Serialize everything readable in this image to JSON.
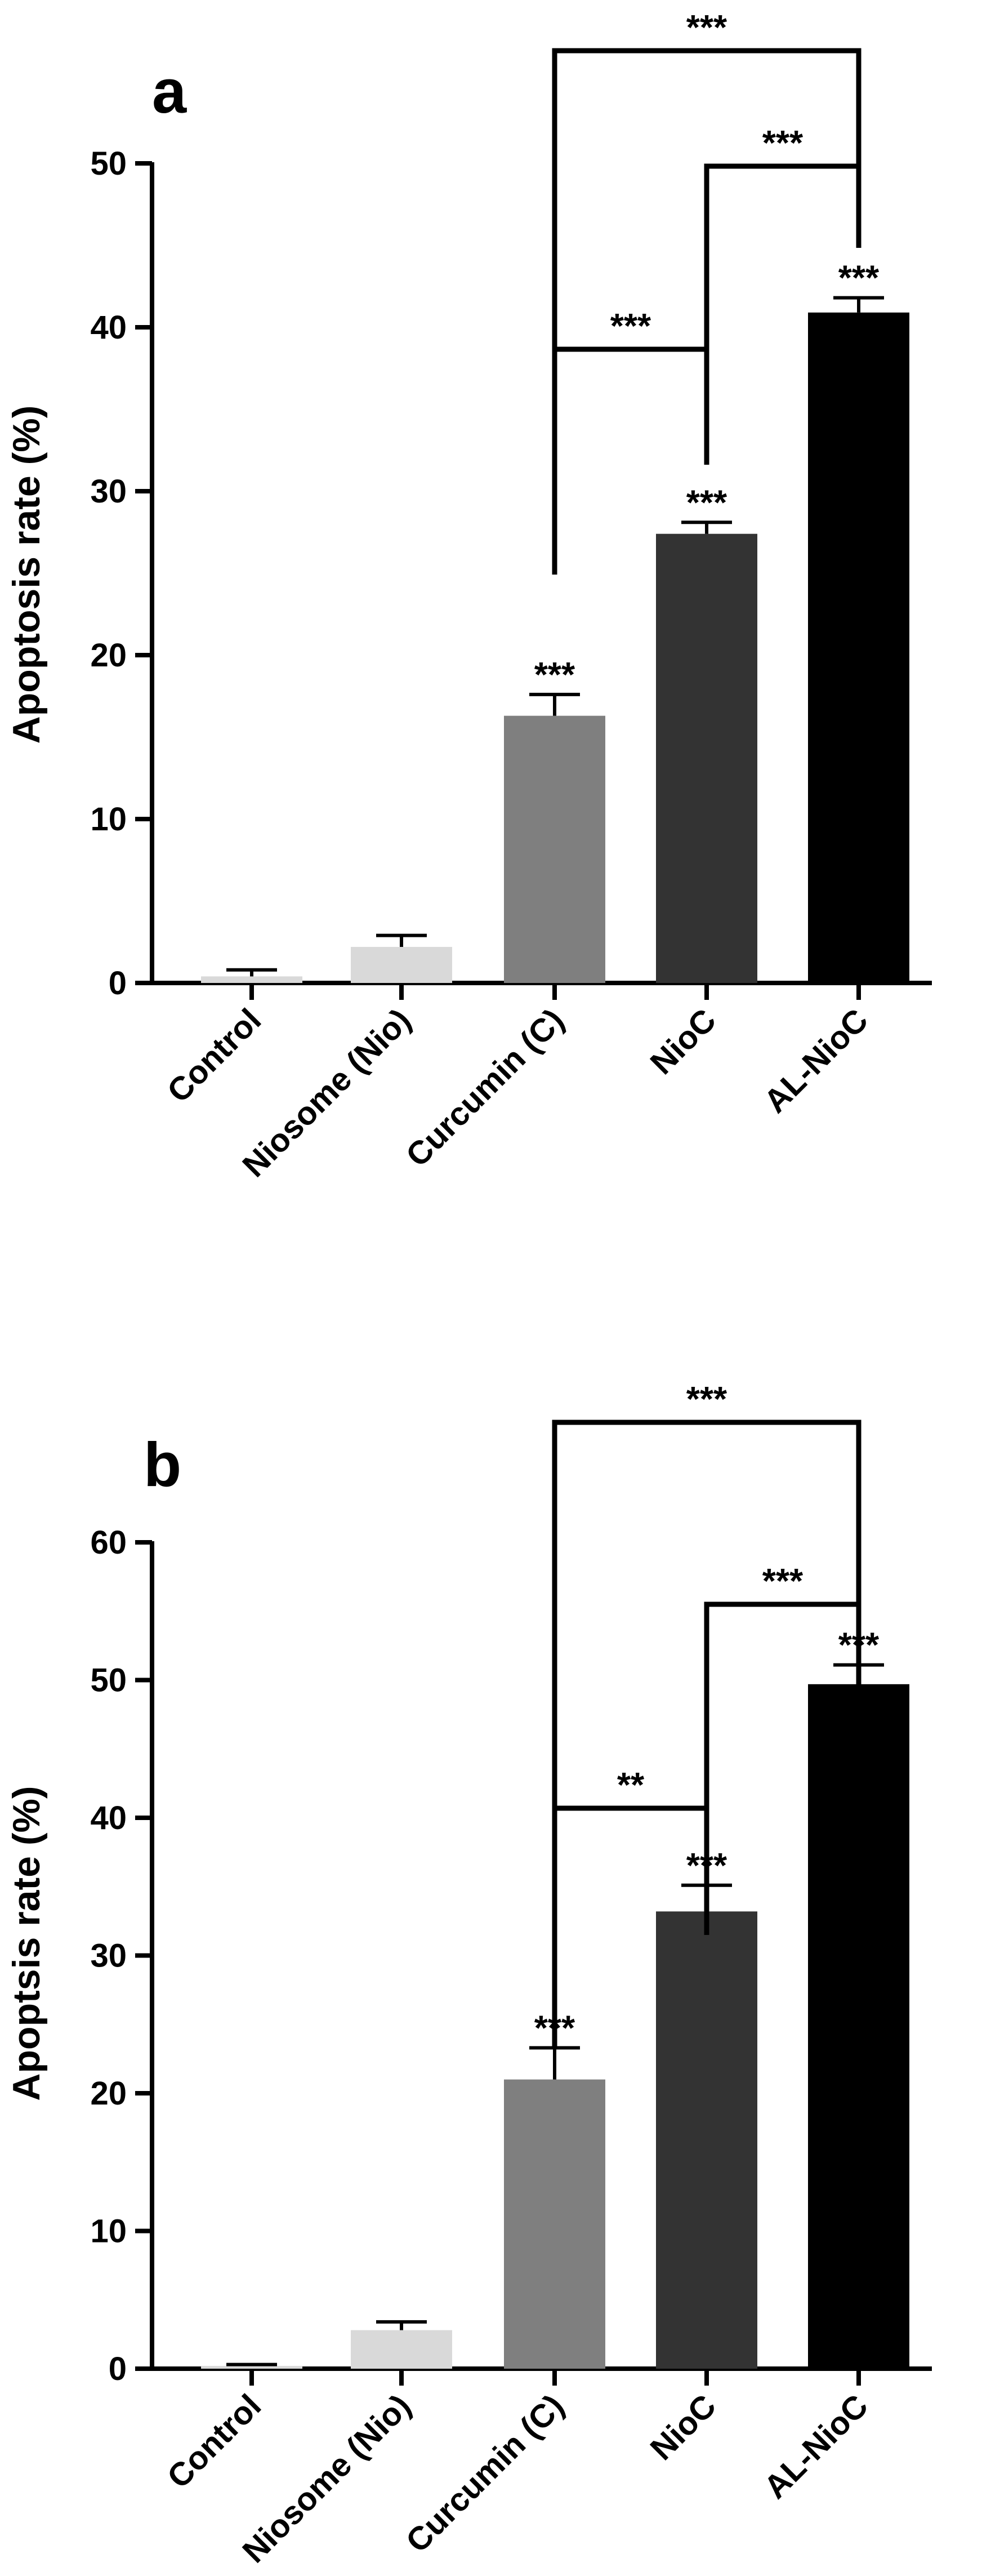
{
  "chart_data": [
    {
      "type": "bar",
      "panel_label": "a",
      "ylabel": "Apoptosis rate (%)",
      "ylim": [
        0,
        50
      ],
      "yticks": [
        "0",
        "10",
        "20",
        "30",
        "40",
        "50"
      ],
      "categories": [
        "Control",
        "Niosome (Nio)",
        "Curcumin (C)",
        "NioC",
        "AL-NioC"
      ],
      "values": [
        0.4,
        2.2,
        16.3,
        27.4,
        40.9
      ],
      "errors": [
        0.4,
        0.7,
        1.3,
        0.7,
        0.9
      ],
      "colors": [
        "#d9d9d9",
        "#d9d9d9",
        "#7f7f7f",
        "#333333",
        "#000000"
      ],
      "bar_labels": [
        "",
        "",
        "***",
        "***",
        "***"
      ],
      "comparisons": [
        {
          "from": "Curcumin (C)",
          "to": "NioC",
          "label": "***"
        },
        {
          "from": "NioC",
          "to": "AL-NioC",
          "label": "***"
        },
        {
          "from": "Curcumin (C)",
          "to": "AL-NioC",
          "label": "***"
        }
      ]
    },
    {
      "type": "bar",
      "panel_label": "b",
      "ylabel": "Apoptsis rate (%)",
      "ylim": [
        0,
        60
      ],
      "yticks": [
        "0",
        "10",
        "20",
        "30",
        "40",
        "50",
        "60"
      ],
      "categories": [
        "Control",
        "Niosome (Nio)",
        "Curcumin (C)",
        "NioC",
        "AL-NioC"
      ],
      "values": [
        0.2,
        2.8,
        21.0,
        33.2,
        49.7
      ],
      "errors": [
        0.1,
        0.6,
        2.3,
        1.9,
        1.4
      ],
      "colors": [
        "#d9d9d9",
        "#d9d9d9",
        "#7f7f7f",
        "#333333",
        "#000000"
      ],
      "bar_labels": [
        "",
        "",
        "***",
        "***",
        "***"
      ],
      "comparisons": [
        {
          "from": "Curcumin (C)",
          "to": "NioC",
          "label": "**"
        },
        {
          "from": "NioC",
          "to": "AL-NioC",
          "label": "***"
        },
        {
          "from": "Curcumin (C)",
          "to": "AL-NioC",
          "label": "***"
        }
      ]
    }
  ]
}
